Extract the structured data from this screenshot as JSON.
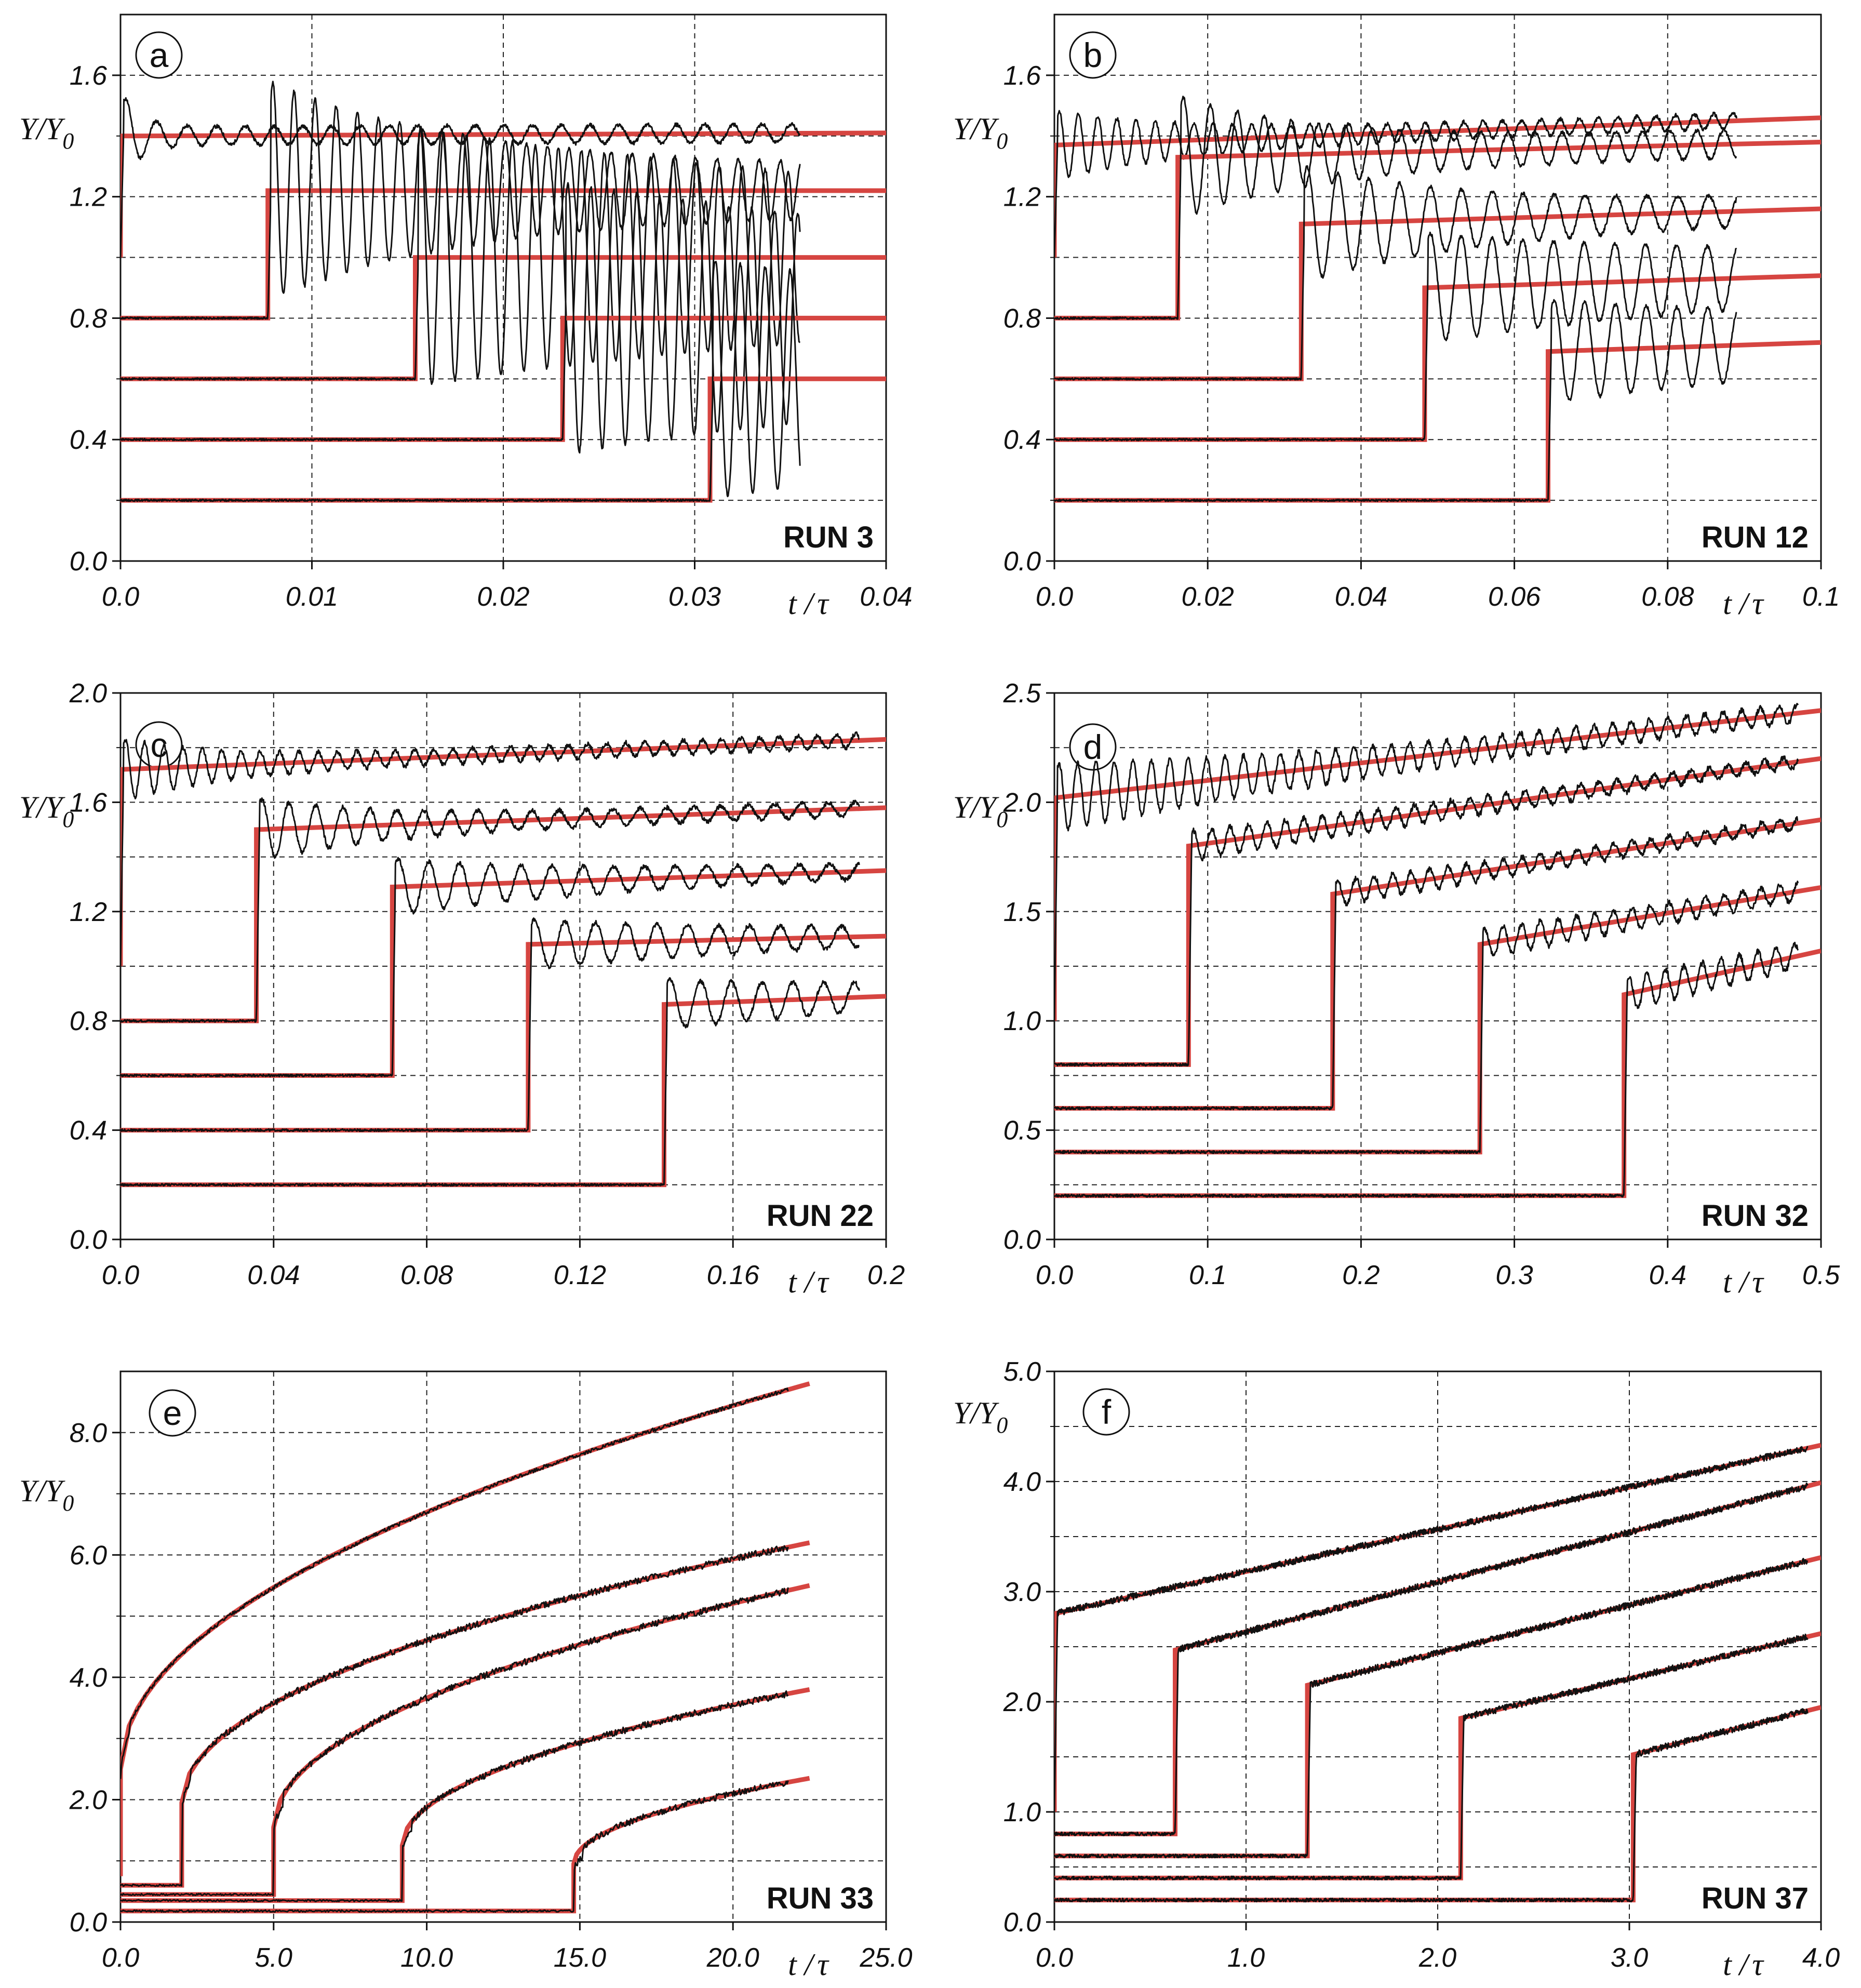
{
  "figure": {
    "y_axis_label": "Y/Y",
    "y_axis_subscript": "0",
    "x_axis_label": "t /",
    "x_axis_symbol": "τ"
  },
  "colors": {
    "model": "#d64541",
    "data": "#111111",
    "grid": "#222222"
  },
  "chart_data": [
    {
      "type": "line",
      "panel": "a",
      "run": "RUN 3",
      "xlim": [
        0,
        0.04
      ],
      "ylim": [
        0,
        1.8
      ],
      "x_ticks": [
        0.0,
        0.01,
        0.02,
        0.03,
        0.04
      ],
      "x_tick_labels": [
        "0.0",
        "0.01",
        "0.02",
        "0.03",
        "0.04"
      ],
      "y_ticks": [
        0.0,
        0.4,
        0.8,
        1.2,
        1.6
      ],
      "y_tick_labels": [
        "0.0",
        "0.4",
        "0.8",
        "1.2",
        "1.6"
      ],
      "x_grid": [
        0.01,
        0.02,
        0.03
      ],
      "y_grid": [
        0.2,
        0.4,
        0.6,
        0.8,
        1.0,
        1.2,
        1.4,
        1.6
      ],
      "data_end_x": 0.0355,
      "series": [
        {
          "t0": 0.0,
          "base": 1.0,
          "jump_to": 1.4,
          "end": 1.41,
          "osc_amp": 0.12,
          "osc_period": 0.0015,
          "osc_decay": 0.0012,
          "noise": 0.006,
          "seed": 11
        },
        {
          "t0": 0.0077,
          "base": 0.8,
          "jump_to": 1.22,
          "end": 1.22,
          "osc_amp": 0.32,
          "osc_period": 0.0011,
          "osc_decay": 0.012,
          "noise": 0.006,
          "seed": 12
        },
        {
          "t0": 0.0154,
          "base": 0.6,
          "jump_to": 1.0,
          "end": 1.0,
          "osc_amp": 0.38,
          "osc_period": 0.0012,
          "osc_decay": 0.04,
          "noise": 0.006,
          "seed": 13
        },
        {
          "t0": 0.0231,
          "base": 0.4,
          "jump_to": 0.8,
          "end": 0.8,
          "osc_amp": 0.4,
          "osc_period": 0.0012,
          "osc_decay": 0.04,
          "noise": 0.006,
          "seed": 14
        },
        {
          "t0": 0.0308,
          "base": 0.2,
          "jump_to": 0.6,
          "end": 0.6,
          "osc_amp": 0.35,
          "osc_period": 0.0013,
          "osc_decay": 0.04,
          "noise": 0.006,
          "seed": 15
        }
      ]
    },
    {
      "type": "line",
      "panel": "b",
      "run": "RUN 12",
      "xlim": [
        0,
        0.1
      ],
      "ylim": [
        0,
        1.8
      ],
      "x_ticks": [
        0.0,
        0.02,
        0.04,
        0.06,
        0.08,
        0.1
      ],
      "x_tick_labels": [
        "0.0",
        "0.02",
        "0.04",
        "0.06",
        "0.08",
        "0.1"
      ],
      "y_ticks": [
        0.0,
        0.4,
        0.8,
        1.2,
        1.6
      ],
      "y_tick_labels": [
        "0.0",
        "0.4",
        "0.8",
        "1.2",
        "1.6"
      ],
      "x_grid": [
        0.02,
        0.04,
        0.06,
        0.08
      ],
      "y_grid": [
        0.2,
        0.4,
        0.6,
        0.8,
        1.0,
        1.2,
        1.4,
        1.6
      ],
      "data_end_x": 0.089,
      "series": [
        {
          "t0": 0.0,
          "base": 1.0,
          "jump_to": 1.37,
          "end": 1.46,
          "osc_amp": 0.1,
          "osc_period": 0.0025,
          "osc_decay": 0.02,
          "noise": 0.006,
          "seed": 21
        },
        {
          "t0": 0.0161,
          "base": 0.8,
          "jump_to": 1.33,
          "end": 1.38,
          "osc_amp": 0.18,
          "osc_period": 0.0035,
          "osc_decay": 0.02,
          "noise": 0.006,
          "seed": 22
        },
        {
          "t0": 0.0322,
          "base": 0.6,
          "jump_to": 1.11,
          "end": 1.16,
          "osc_amp": 0.17,
          "osc_period": 0.004,
          "osc_decay": 0.025,
          "noise": 0.006,
          "seed": 23
        },
        {
          "t0": 0.0483,
          "base": 0.4,
          "jump_to": 0.9,
          "end": 0.94,
          "osc_amp": 0.16,
          "osc_period": 0.004,
          "osc_decay": 0.06,
          "noise": 0.006,
          "seed": 24
        },
        {
          "t0": 0.0644,
          "base": 0.2,
          "jump_to": 0.69,
          "end": 0.72,
          "osc_amp": 0.15,
          "osc_period": 0.004,
          "osc_decay": 0.06,
          "noise": 0.006,
          "seed": 25
        }
      ]
    },
    {
      "type": "line",
      "panel": "c",
      "run": "RUN 22",
      "xlim": [
        0,
        0.2
      ],
      "ylim": [
        0,
        2.0
      ],
      "x_ticks": [
        0.0,
        0.04,
        0.08,
        0.12,
        0.16,
        0.2
      ],
      "x_tick_labels": [
        "0.0",
        "0.04",
        "0.08",
        "0.12",
        "0.16",
        "0.2"
      ],
      "y_ticks": [
        0.0,
        0.4,
        0.8,
        1.2,
        1.6,
        2.0
      ],
      "y_tick_labels": [
        "0.0",
        "0.4",
        "0.8",
        "1.2",
        "1.6",
        "2.0"
      ],
      "x_grid": [
        0.04,
        0.08,
        0.12,
        0.16
      ],
      "y_grid": [
        0.2,
        0.4,
        0.6,
        0.8,
        1.0,
        1.2,
        1.4,
        1.6,
        1.8
      ],
      "data_end_x": 0.193,
      "series": [
        {
          "t0": 0.0,
          "base": 1.0,
          "jump_to": 1.72,
          "end": 1.83,
          "osc_amp": 0.1,
          "osc_period": 0.005,
          "osc_decay": 0.03,
          "noise": 0.008,
          "seed": 31
        },
        {
          "t0": 0.0355,
          "base": 0.8,
          "jump_to": 1.5,
          "end": 1.58,
          "osc_amp": 0.1,
          "osc_period": 0.007,
          "osc_decay": 0.04,
          "noise": 0.008,
          "seed": 32
        },
        {
          "t0": 0.071,
          "base": 0.6,
          "jump_to": 1.29,
          "end": 1.35,
          "osc_amp": 0.09,
          "osc_period": 0.008,
          "osc_decay": 0.06,
          "noise": 0.008,
          "seed": 33
        },
        {
          "t0": 0.1065,
          "base": 0.4,
          "jump_to": 1.08,
          "end": 1.11,
          "osc_amp": 0.08,
          "osc_period": 0.008,
          "osc_decay": 0.08,
          "noise": 0.008,
          "seed": 34
        },
        {
          "t0": 0.142,
          "base": 0.2,
          "jump_to": 0.86,
          "end": 0.89,
          "osc_amp": 0.08,
          "osc_period": 0.008,
          "osc_decay": 0.08,
          "noise": 0.008,
          "seed": 35
        }
      ]
    },
    {
      "type": "line",
      "panel": "d",
      "run": "RUN 32",
      "xlim": [
        0,
        0.5
      ],
      "ylim": [
        0,
        2.5
      ],
      "x_ticks": [
        0.0,
        0.1,
        0.2,
        0.3,
        0.4,
        0.5
      ],
      "x_tick_labels": [
        "0.0",
        "0.1",
        "0.2",
        "0.3",
        "0.4",
        "0.5"
      ],
      "y_ticks": [
        0.0,
        0.5,
        1.0,
        1.5,
        2.0,
        2.5
      ],
      "y_tick_labels": [
        "0.0",
        "0.5",
        "1.0",
        "1.5",
        "2.0",
        "2.5"
      ],
      "x_grid": [
        0.1,
        0.2,
        0.3,
        0.4
      ],
      "y_grid": [
        0.25,
        0.5,
        0.75,
        1.0,
        1.25,
        1.5,
        1.75,
        2.0,
        2.25
      ],
      "data_end_x": 0.485,
      "series": [
        {
          "t0": 0.0,
          "base": 1.0,
          "jump_to": 2.02,
          "end": 2.42,
          "osc_amp": 0.14,
          "osc_period": 0.012,
          "osc_decay": 0.2,
          "noise": 0.012,
          "seed": 41
        },
        {
          "t0": 0.0875,
          "base": 0.8,
          "jump_to": 1.8,
          "end": 2.2,
          "osc_amp": 0.06,
          "osc_period": 0.012,
          "osc_decay": 0.3,
          "noise": 0.012,
          "seed": 42
        },
        {
          "t0": 0.1815,
          "base": 0.6,
          "jump_to": 1.58,
          "end": 1.92,
          "osc_amp": 0.05,
          "osc_period": 0.012,
          "osc_decay": 0.3,
          "noise": 0.012,
          "seed": 43
        },
        {
          "t0": 0.2775,
          "base": 0.4,
          "jump_to": 1.35,
          "end": 1.61,
          "osc_amp": 0.06,
          "osc_period": 0.012,
          "osc_decay": 0.3,
          "noise": 0.012,
          "seed": 44
        },
        {
          "t0": 0.3715,
          "base": 0.2,
          "jump_to": 1.12,
          "end": 1.32,
          "osc_amp": 0.07,
          "osc_period": 0.012,
          "osc_decay": 0.3,
          "noise": 0.012,
          "seed": 45
        }
      ]
    },
    {
      "type": "line",
      "panel": "e",
      "run": "RUN 33",
      "xlim": [
        0,
        25.0
      ],
      "ylim": [
        0,
        9.0
      ],
      "x_ticks": [
        0.0,
        5.0,
        10.0,
        15.0,
        20.0,
        25.0
      ],
      "x_tick_labels": [
        "0.0",
        "5.0",
        "10.0",
        "15.0",
        "20.0",
        "25.0"
      ],
      "y_ticks": [
        0.0,
        2.0,
        4.0,
        6.0,
        8.0
      ],
      "y_tick_labels": [
        "0.0",
        "2.0",
        "4.0",
        "6.0",
        "8.0"
      ],
      "x_grid": [
        5.0,
        10.0,
        15.0,
        20.0
      ],
      "y_grid": [
        1.0,
        2.0,
        3.0,
        4.0,
        5.0,
        6.0,
        7.0,
        8.0
      ],
      "data_end_x": 21.8,
      "model_end_x": 22.5,
      "series": [
        {
          "t0": 0.0,
          "base": 0.75,
          "jump_to": 2.5,
          "A": 0.0,
          "p": 0.5,
          "noise": 0.03,
          "seed": 51
        },
        {
          "t0": 2.0,
          "base": 0.6,
          "jump_to": 1.95,
          "A": 0.0,
          "p": 0.5,
          "noise": 0.05,
          "seed": 52
        },
        {
          "t0": 5.0,
          "base": 0.45,
          "jump_to": 1.55,
          "A": 0.0,
          "p": 0.5,
          "noise": 0.05,
          "seed": 53
        },
        {
          "t0": 9.2,
          "base": 0.35,
          "jump_to": 1.25,
          "A": 0.0,
          "p": 0.5,
          "noise": 0.05,
          "seed": 54
        },
        {
          "t0": 14.8,
          "base": 0.18,
          "jump_to": 0.95,
          "A": 0.0,
          "p": 0.5,
          "noise": 0.05,
          "seed": 55
        }
      ],
      "model_end_values": [
        8.8,
        6.2,
        5.5,
        3.8,
        2.35
      ]
    },
    {
      "type": "line",
      "panel": "f",
      "run": "RUN 37",
      "xlim": [
        0,
        4.0
      ],
      "ylim": [
        0,
        5.0
      ],
      "x_ticks": [
        0.0,
        1.0,
        2.0,
        3.0,
        4.0
      ],
      "x_tick_labels": [
        "0.0",
        "1.0",
        "2.0",
        "3.0",
        "4.0"
      ],
      "y_ticks": [
        0.0,
        1.0,
        2.0,
        3.0,
        4.0,
        5.0
      ],
      "y_tick_labels": [
        "0.0",
        "1.0",
        "2.0",
        "3.0",
        "4.0",
        "5.0"
      ],
      "x_grid": [
        1.0,
        2.0,
        3.0
      ],
      "y_grid": [
        0.5,
        1.0,
        1.5,
        2.0,
        2.5,
        3.0,
        3.5,
        4.0,
        4.5
      ],
      "data_end_x": 3.93,
      "series": [
        {
          "t0": 0.0,
          "base": 1.0,
          "jump_to": 2.8,
          "end": 4.33,
          "osc_amp": 0.0,
          "osc_period": 0.05,
          "osc_decay": 0.1,
          "noise": 0.03,
          "seed": 61
        },
        {
          "t0": 0.63,
          "base": 0.8,
          "jump_to": 2.47,
          "end": 3.99,
          "osc_amp": 0.0,
          "osc_period": 0.05,
          "osc_decay": 0.1,
          "noise": 0.03,
          "seed": 62
        },
        {
          "t0": 1.32,
          "base": 0.6,
          "jump_to": 2.15,
          "end": 3.31,
          "osc_amp": 0.0,
          "osc_period": 0.05,
          "osc_decay": 0.1,
          "noise": 0.03,
          "seed": 63
        },
        {
          "t0": 2.12,
          "base": 0.4,
          "jump_to": 1.85,
          "end": 2.62,
          "osc_amp": 0.0,
          "osc_period": 0.05,
          "osc_decay": 0.1,
          "noise": 0.03,
          "seed": 64
        },
        {
          "t0": 3.02,
          "base": 0.2,
          "jump_to": 1.52,
          "end": 1.95,
          "osc_amp": 0.0,
          "osc_period": 0.05,
          "osc_decay": 0.1,
          "noise": 0.03,
          "seed": 65
        }
      ]
    }
  ]
}
